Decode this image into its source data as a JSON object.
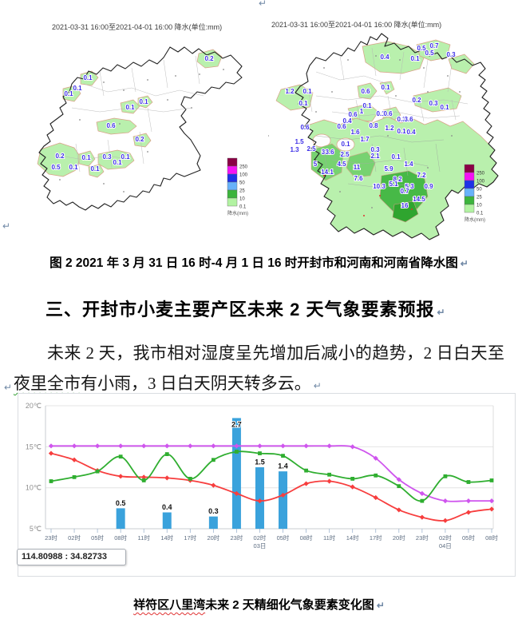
{
  "marks": {
    "pilcrow": "↵"
  },
  "maps": {
    "left": {
      "title": "2021-03-31 16:00至2021-04-01 16:00 降水(单位:mm)",
      "values": [
        {
          "x": 75,
          "y": 75,
          "v": "0.1"
        },
        {
          "x": 62,
          "y": 88,
          "v": "0.1"
        },
        {
          "x": 51,
          "y": 95,
          "v": "0.1"
        },
        {
          "x": 128,
          "y": 112,
          "v": "0.1"
        },
        {
          "x": 145,
          "y": 105,
          "v": "0.1"
        },
        {
          "x": 227,
          "y": 51,
          "v": "0.2"
        },
        {
          "x": 104,
          "y": 135,
          "v": "0.6"
        },
        {
          "x": 40,
          "y": 173,
          "v": "0.2"
        },
        {
          "x": 35,
          "y": 187,
          "v": "0.5"
        },
        {
          "x": 57,
          "y": 187,
          "v": "0.1"
        },
        {
          "x": 73,
          "y": 175,
          "v": "0.1"
        },
        {
          "x": 99,
          "y": 174,
          "v": "0.3"
        },
        {
          "x": 112,
          "y": 181,
          "v": "0.1"
        },
        {
          "x": 122,
          "y": 174,
          "v": "0.1"
        },
        {
          "x": 140,
          "y": 152,
          "v": "0.2"
        },
        {
          "x": 84,
          "y": 189,
          "v": "0.1"
        }
      ]
    },
    "right": {
      "title": "2021-03-31 16:00至2021-04-01 16:00 降水(单位:mm)",
      "values": [
        {
          "x": 192,
          "y": 43,
          "v": "0.5"
        },
        {
          "x": 208,
          "y": 40,
          "v": "0.7"
        },
        {
          "x": 202,
          "y": 49,
          "v": "0.5"
        },
        {
          "x": 229,
          "y": 51,
          "v": "0.3"
        },
        {
          "x": 184,
          "y": 56,
          "v": "0.1"
        },
        {
          "x": 146,
          "y": 54,
          "v": "0.4"
        },
        {
          "x": 27,
          "y": 97,
          "v": "1.2"
        },
        {
          "x": 49,
          "y": 97,
          "v": "0.1"
        },
        {
          "x": 44,
          "y": 112,
          "v": "0.1"
        },
        {
          "x": 122,
          "y": 97,
          "v": "0.6"
        },
        {
          "x": 147,
          "y": 92,
          "v": "0.1"
        },
        {
          "x": 186,
          "y": 108,
          "v": "0.2"
        },
        {
          "x": 207,
          "y": 112,
          "v": "0.3"
        },
        {
          "x": 221,
          "y": 117,
          "v": "0.1"
        },
        {
          "x": 124,
          "y": 115,
          "v": "0.1"
        },
        {
          "x": 117,
          "y": 122,
          "v": "1"
        },
        {
          "x": 106,
          "y": 126,
          "v": "0.6"
        },
        {
          "x": 141,
          "y": 125,
          "v": "0.1"
        },
        {
          "x": 150,
          "y": 125,
          "v": "0.6"
        },
        {
          "x": 99,
          "y": 134,
          "v": "0.4"
        },
        {
          "x": 92,
          "y": 141,
          "v": "0.6"
        },
        {
          "x": 132,
          "y": 140,
          "v": "0.8"
        },
        {
          "x": 152,
          "y": 143,
          "v": "1.2"
        },
        {
          "x": 46,
          "y": 142,
          "v": "0.6"
        },
        {
          "x": 39,
          "y": 160,
          "v": "1.5"
        },
        {
          "x": 33,
          "y": 170,
          "v": "1.3"
        },
        {
          "x": 54,
          "y": 169,
          "v": "2.5"
        },
        {
          "x": 69,
          "y": 173,
          "v": "3"
        },
        {
          "x": 77,
          "y": 173,
          "v": "3.6"
        },
        {
          "x": 96,
          "y": 176,
          "v": "2.5"
        },
        {
          "x": 97,
          "y": 163,
          "v": "0.1"
        },
        {
          "x": 109,
          "y": 148,
          "v": "1.6"
        },
        {
          "x": 121,
          "y": 157,
          "v": "1.7"
        },
        {
          "x": 134,
          "y": 170,
          "v": "0.3"
        },
        {
          "x": 134,
          "y": 178,
          "v": "2.1"
        },
        {
          "x": 92,
          "y": 188,
          "v": "4.5"
        },
        {
          "x": 59,
          "y": 188,
          "v": "5"
        },
        {
          "x": 74,
          "y": 198,
          "v": "14.1"
        },
        {
          "x": 111,
          "y": 192,
          "v": "11"
        },
        {
          "x": 113,
          "y": 206,
          "v": "7.6"
        },
        {
          "x": 151,
          "y": 194,
          "v": "5.9"
        },
        {
          "x": 160,
          "y": 179,
          "v": "0.1"
        },
        {
          "x": 176,
          "y": 188,
          "v": "1.4"
        },
        {
          "x": 162,
          "y": 207,
          "v": "8.2"
        },
        {
          "x": 157,
          "y": 213,
          "v": "5.1"
        },
        {
          "x": 177,
          "y": 216,
          "v": "5.3"
        },
        {
          "x": 139,
          "y": 216,
          "v": "10.3"
        },
        {
          "x": 171,
          "y": 222,
          "v": "0.7"
        },
        {
          "x": 171,
          "y": 240,
          "v": "16"
        },
        {
          "x": 189,
          "y": 232,
          "v": "14.5"
        },
        {
          "x": 192,
          "y": 202,
          "v": "7.2"
        },
        {
          "x": 201,
          "y": 216,
          "v": "0.9"
        },
        {
          "x": 179,
          "y": 148,
          "v": "0.4"
        },
        {
          "x": 167,
          "y": 147,
          "v": "0.1"
        },
        {
          "x": 167,
          "y": 132,
          "v": "0.3"
        },
        {
          "x": 176,
          "y": 132,
          "v": "3.6"
        }
      ]
    },
    "legend": {
      "title": "降水(mm)",
      "entries": [
        {
          "label": "250",
          "color": "#8a0045"
        },
        {
          "label": "100",
          "color": "#f413f4"
        },
        {
          "label": "50",
          "color": "#1e32e6"
        },
        {
          "label": "25",
          "color": "#68b2fa"
        },
        {
          "label": "10",
          "color": "#3cb43c"
        },
        {
          "label": "0.1",
          "color": "#b2f3a2"
        }
      ]
    }
  },
  "captions": {
    "fig2": "图 2  2021 年 3 月 31 日 16 时-4 月 1 日 16 时开封市和河南和河南省降水图"
  },
  "heading": {
    "text": "三、开封市小麦主要产区未来 2 天气象要素预报"
  },
  "body": {
    "part1": "未来 2 天，我市相对湿度呈先增加后减小的趋势，2 日白天至",
    "wavy": "夜里全市",
    "part2": "有小雨，3 日白天阴天转多云。"
  },
  "chart_caption": {
    "wavy": "祥符区八里湾",
    "rest": "未来 2 天精细化气象要素变化图"
  },
  "chart_data": {
    "type": "mixed bar+line",
    "x_labels": [
      "23时",
      "02时",
      "05时",
      "08时",
      "11时",
      "14时",
      "17时",
      "20时",
      "23时",
      "02时",
      "05时",
      "08时",
      "11时",
      "14时",
      "17时",
      "20时",
      "23时",
      "02时",
      "05时",
      "08时"
    ],
    "day_labels": [
      {
        "index": 9,
        "label": "03日"
      },
      {
        "index": 17,
        "label": "04日"
      }
    ],
    "y_ticks": [
      {
        "value": 20,
        "label": "20℃"
      },
      {
        "value": 15,
        "label": "15℃"
      },
      {
        "value": 10,
        "label": "10℃"
      },
      {
        "value": 5,
        "label": "5℃"
      }
    ],
    "y_range": [
      5,
      20
    ],
    "grid": true,
    "legend_position": "none",
    "bars": {
      "color": "#3aa2dc",
      "axis_note": "precipitation mm, 1 mm spans 5 axis units from baseline",
      "values": [
        null,
        null,
        null,
        0.5,
        null,
        0.4,
        null,
        0.3,
        2.7,
        1.5,
        1.4,
        null,
        null,
        null,
        null,
        null,
        null,
        null,
        null,
        null
      ]
    },
    "series": [
      {
        "name": "magenta-line",
        "color": "#cf55ee",
        "marker": "diamond",
        "values": [
          15.1,
          15.1,
          15.1,
          15.1,
          15.1,
          15.1,
          15.1,
          15.1,
          15.1,
          15.1,
          15.1,
          15.1,
          15.1,
          15.0,
          13.6,
          11.0,
          9.3,
          8.4,
          8.4,
          8.4
        ]
      },
      {
        "name": "red-line",
        "color": "#f73e3e",
        "marker": "diamond",
        "values": [
          14.2,
          13.4,
          12.1,
          11.4,
          11.3,
          11.2,
          10.9,
          10.3,
          9.3,
          8.4,
          9.1,
          10.5,
          10.8,
          10.1,
          8.8,
          7.3,
          6.4,
          6.0,
          7.0,
          7.4
        ]
      },
      {
        "name": "green-line",
        "color": "#2fae30",
        "marker": "square",
        "values": [
          10.8,
          11.3,
          12.0,
          13.8,
          10.9,
          14.1,
          11.1,
          13.4,
          14.4,
          14.2,
          13.9,
          12.1,
          11.6,
          11.1,
          11.5,
          10.2,
          8.4,
          11.4,
          10.7,
          10.9
        ]
      }
    ],
    "tooltip": "114.80988 : 34.82733"
  }
}
